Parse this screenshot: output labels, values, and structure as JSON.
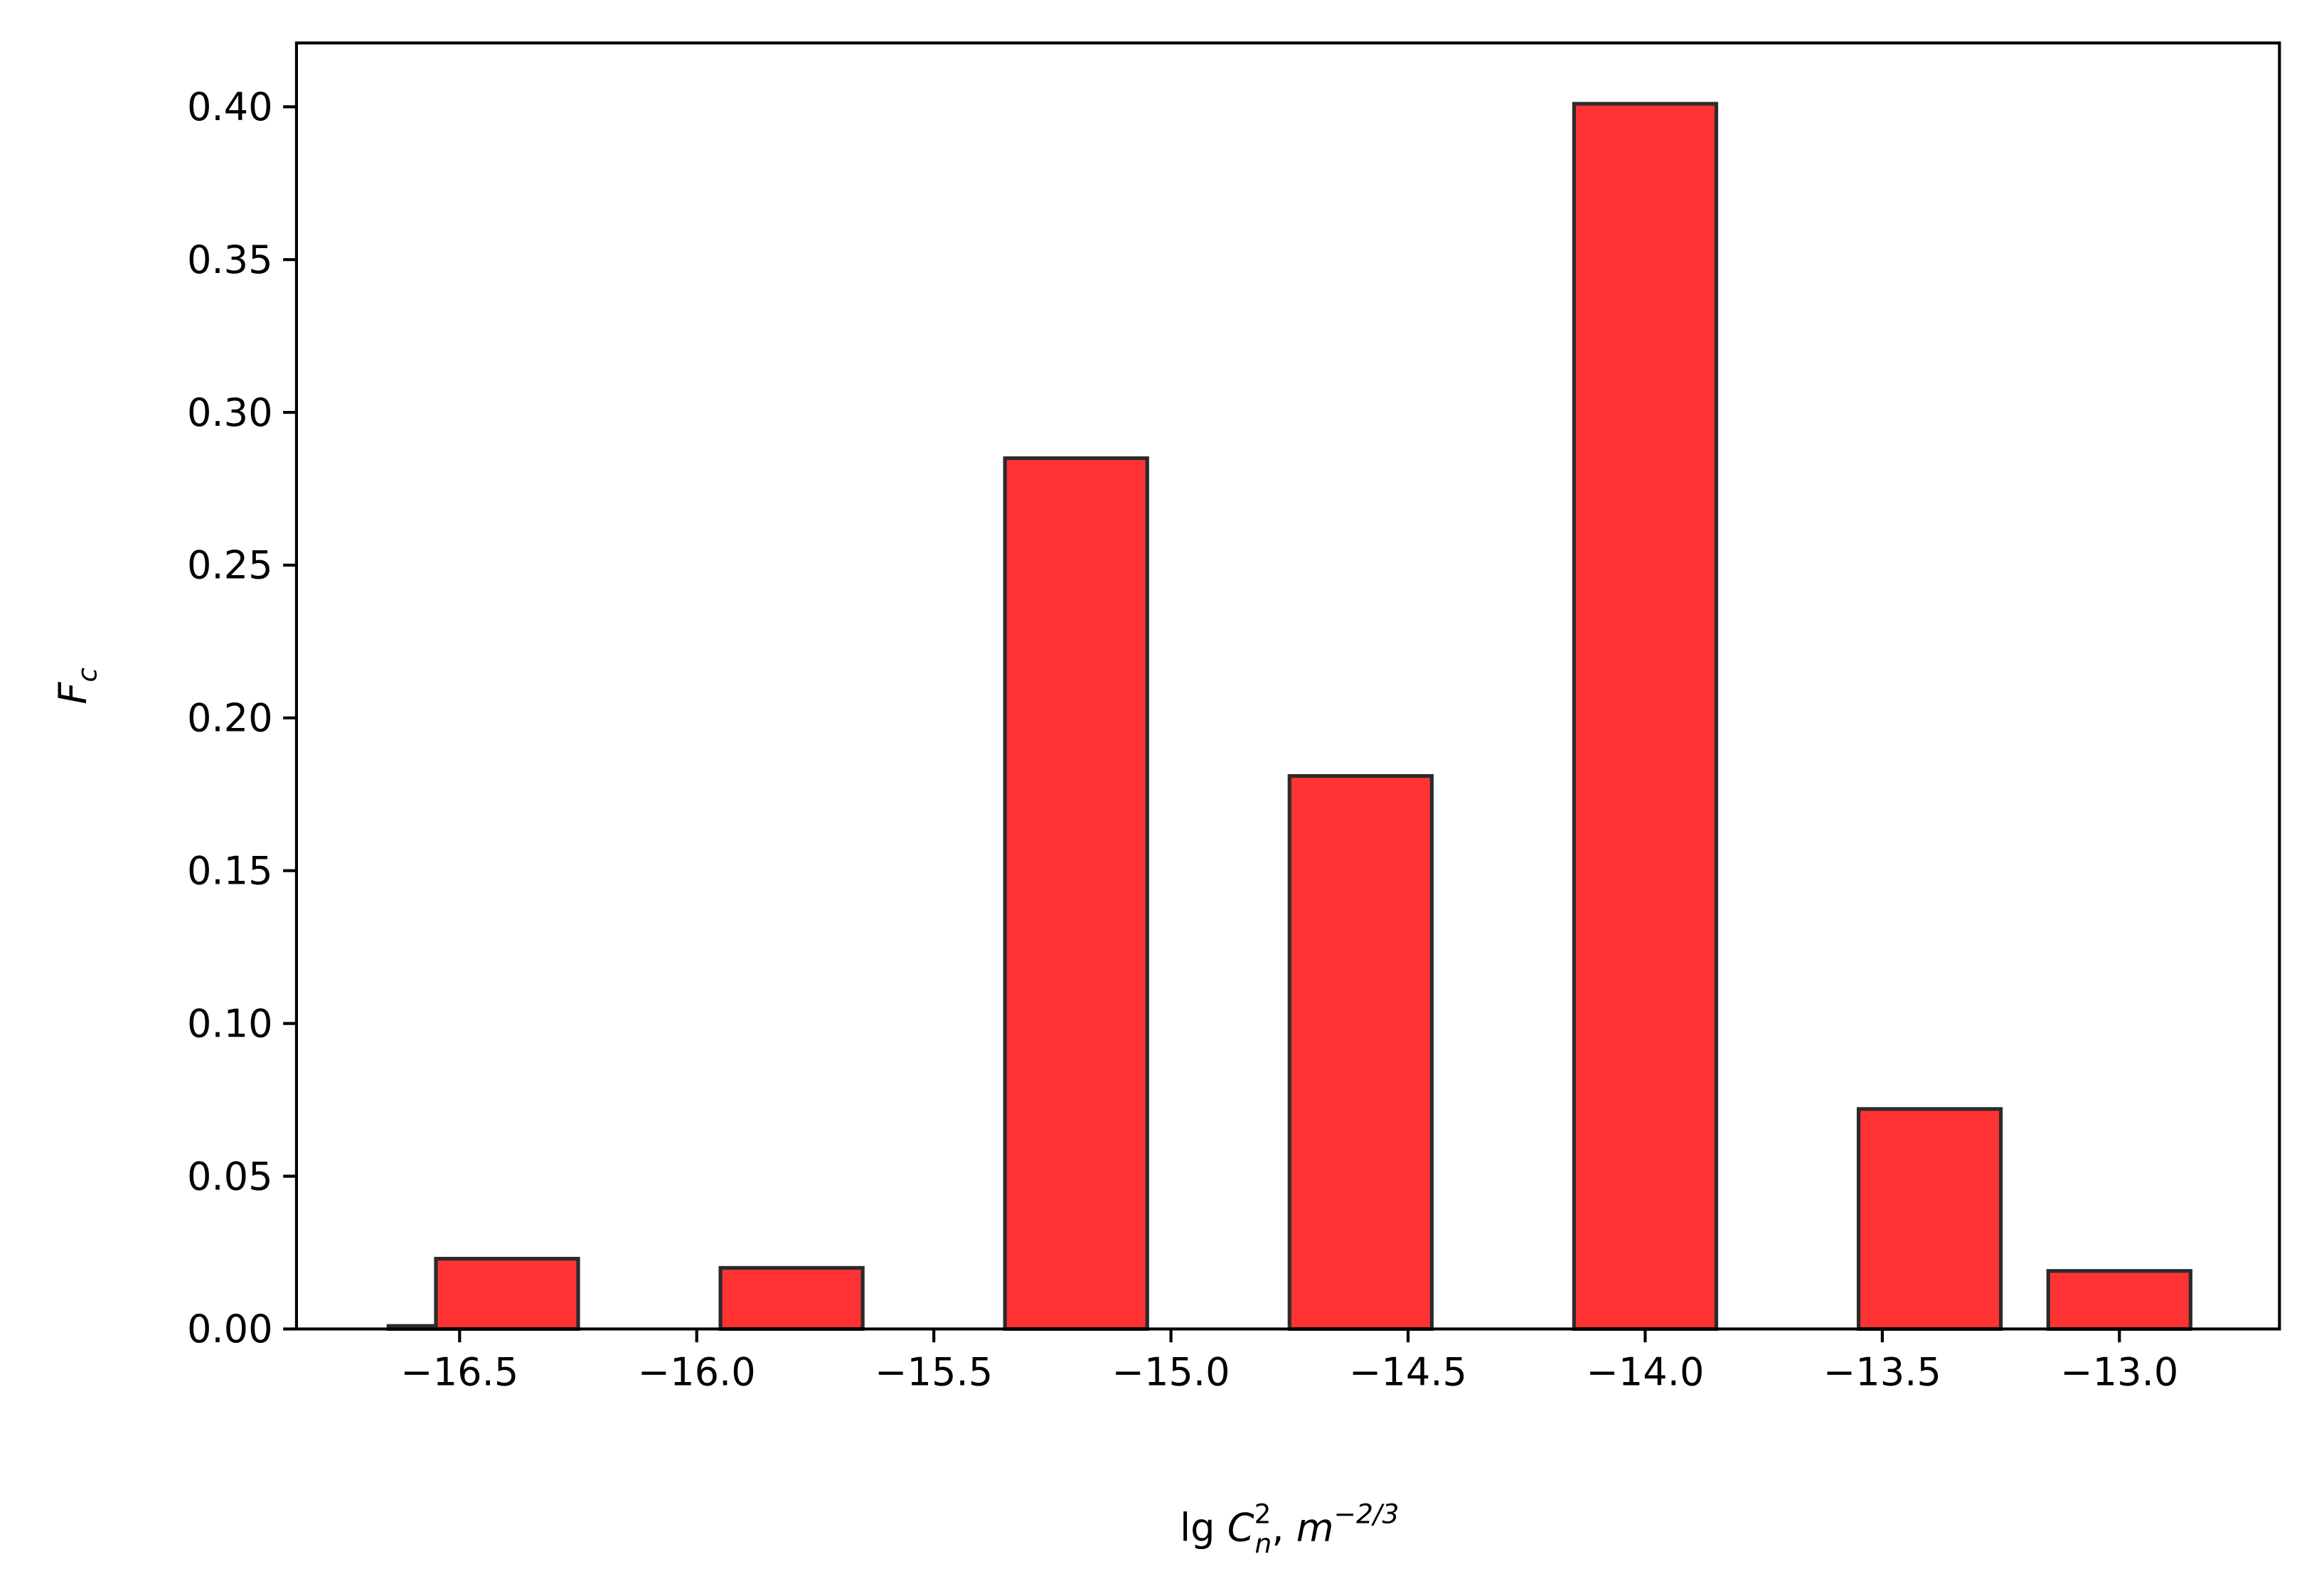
{
  "chart_data": {
    "type": "bar",
    "xlabel": [
      "lg ",
      "C",
      "2",
      "n",
      ", ",
      "m",
      "−2/3"
    ],
    "ylabel": [
      "F",
      "c"
    ],
    "x": [
      -16.5,
      -16.4,
      -15.8,
      -15.2,
      -14.6,
      -14.0,
      -13.4,
      -13.0
    ],
    "values": [
      0.001,
      0.023,
      0.02,
      0.285,
      0.181,
      0.401,
      0.072,
      0.019
    ],
    "bar_width": 0.3,
    "color": "#ff3333",
    "edgecolor": "#2b2b2b",
    "xlim": [
      -16.844,
      -12.6625
    ],
    "ylim": [
      0,
      0.4209
    ],
    "xticks": [
      {
        "value": -16.5,
        "label": "−16.5"
      },
      {
        "value": -16.0,
        "label": "−16.0"
      },
      {
        "value": -15.5,
        "label": "−15.5"
      },
      {
        "value": -15.0,
        "label": "−15.0"
      },
      {
        "value": -14.5,
        "label": "−14.5"
      },
      {
        "value": -14.0,
        "label": "−14.0"
      },
      {
        "value": -13.5,
        "label": "−13.5"
      },
      {
        "value": -13.0,
        "label": "−13.0"
      }
    ],
    "yticks": [
      {
        "value": 0,
        "label": "0.00"
      },
      {
        "value": 0.05,
        "label": "0.05"
      },
      {
        "value": 0.1,
        "label": "0.10"
      },
      {
        "value": 0.15,
        "label": "0.15"
      },
      {
        "value": 0.2,
        "label": "0.20"
      },
      {
        "value": 0.25,
        "label": "0.25"
      },
      {
        "value": 0.3,
        "label": "0.30"
      },
      {
        "value": 0.35,
        "label": "0.35"
      },
      {
        "value": 0.4,
        "label": "0.40"
      }
    ]
  }
}
